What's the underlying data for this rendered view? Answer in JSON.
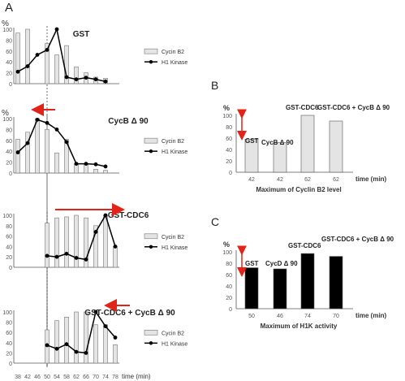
{
  "chart_data": [
    {
      "type": "bar",
      "panel_letter": "A",
      "title": "GST",
      "unit_label": "%",
      "x": [
        38,
        42,
        46,
        50,
        54,
        58,
        62,
        66,
        70,
        74,
        78
      ],
      "y_ticks": [
        "0",
        "20",
        "40",
        "60",
        "80",
        "100"
      ],
      "ylim": [
        0,
        100
      ],
      "series": [
        {
          "name": "Cycin B2",
          "type": "bar",
          "values": [
            93,
            100,
            null,
            74,
            53,
            70,
            31,
            20,
            12,
            10,
            null
          ]
        },
        {
          "name": "H1 Kinase",
          "type": "line",
          "values": [
            22,
            32,
            53,
            62,
            100,
            12,
            8,
            11,
            8,
            4,
            null
          ]
        }
      ],
      "legend": "right",
      "guide_x": 50
    },
    {
      "type": "bar",
      "title": "CycB Δ 90",
      "unit_label": "%",
      "x": [
        38,
        42,
        46,
        50,
        54,
        58,
        62,
        66,
        70,
        74,
        78
      ],
      "y_ticks": [
        "0",
        "20",
        "40",
        "60",
        "80",
        "100"
      ],
      "ylim": [
        0,
        100
      ],
      "series": [
        {
          "name": "Cycin B2",
          "type": "bar",
          "values": [
            62,
            75,
            100,
            80,
            37,
            62,
            17,
            17,
            7,
            5,
            null
          ]
        },
        {
          "name": "H1 Kinase",
          "type": "line",
          "values": [
            38,
            55,
            98,
            92,
            80,
            57,
            17,
            17,
            16,
            12,
            null
          ]
        }
      ],
      "arrow": "left",
      "legend": "right",
      "guide_x": 50
    },
    {
      "type": "bar",
      "title": "GST-CDC6",
      "unit_label": "",
      "x": [
        38,
        42,
        46,
        50,
        54,
        58,
        62,
        66,
        70,
        74,
        78
      ],
      "y_ticks": [
        "0",
        "20",
        "40",
        "60",
        "80",
        "100"
      ],
      "ylim": [
        0,
        100
      ],
      "series": [
        {
          "name": "Cycin B2",
          "type": "bar",
          "values": [
            null,
            null,
            null,
            85,
            95,
            97,
            100,
            95,
            80,
            100,
            40
          ]
        },
        {
          "name": "H1 Kinase",
          "type": "line",
          "values": [
            null,
            null,
            null,
            22,
            20,
            26,
            18,
            15,
            68,
            100,
            40
          ]
        }
      ],
      "arrow": "right",
      "legend": "right",
      "guide_x": 50
    },
    {
      "type": "bar",
      "title": "GST-CDC6 + CycB Δ 90",
      "unit_label": "",
      "x": [
        38,
        42,
        46,
        50,
        54,
        58,
        62,
        66,
        70,
        74,
        78
      ],
      "x_tick_labels": [
        "38",
        "42",
        "46",
        "50",
        "54",
        "58",
        "62",
        "66",
        "70",
        "74",
        "78"
      ],
      "xlabel": "time (min)",
      "y_ticks": [
        "0",
        "20",
        "40",
        "60",
        "80",
        "100"
      ],
      "ylim": [
        0,
        100
      ],
      "series": [
        {
          "name": "Cycin B2",
          "type": "bar",
          "values": [
            null,
            null,
            null,
            65,
            83,
            90,
            100,
            100,
            75,
            75,
            36
          ]
        },
        {
          "name": "H1 Kinase",
          "type": "line",
          "values": [
            null,
            null,
            null,
            35,
            28,
            37,
            22,
            20,
            100,
            72,
            50
          ]
        }
      ],
      "arrow": "left",
      "legend": "right",
      "guide_x": 50
    },
    {
      "type": "bar",
      "panel_letter": "B",
      "unit_label": "%",
      "categories": [
        "42",
        "42",
        "62",
        "62"
      ],
      "bar_labels": [
        "GST",
        "CycB Δ 90",
        "GST-CDC6",
        "GST-CDC6 + CycB Δ 90"
      ],
      "values": [
        58,
        52,
        100,
        90
      ],
      "bar_colors": [
        "#e4e4e4",
        "#e4e4e4",
        "#e4e4e4",
        "#e4e4e4"
      ],
      "y_ticks": [
        "0",
        "20",
        "40",
        "60",
        "80",
        "100"
      ],
      "ylim": [
        0,
        100
      ],
      "xlabel": "time (min)",
      "caption": "Maximum of Cyclin B2 level"
    },
    {
      "type": "bar",
      "panel_letter": "C",
      "unit_label": "%",
      "categories": [
        "50",
        "46",
        "74",
        "70"
      ],
      "bar_labels": [
        "GST",
        "CycD Δ 90",
        "GST-CDC6",
        "GST-CDC6 + CycB Δ 90"
      ],
      "values": [
        72,
        70,
        97,
        92
      ],
      "bar_colors": [
        "#000000",
        "#000000",
        "#000000",
        "#000000"
      ],
      "y_ticks": [
        "0",
        "20",
        "40",
        "60",
        "80",
        "100"
      ],
      "ylim": [
        0,
        100
      ],
      "xlabel": "time (min)",
      "caption": "Maximum of H1K activity"
    }
  ],
  "colors": {
    "bar_fill": "#e4e4e4",
    "bar_stroke": "#777777",
    "line": "#000000",
    "arrow": "#e2231a",
    "axis": "#555555",
    "dark_bar": "#000000"
  }
}
